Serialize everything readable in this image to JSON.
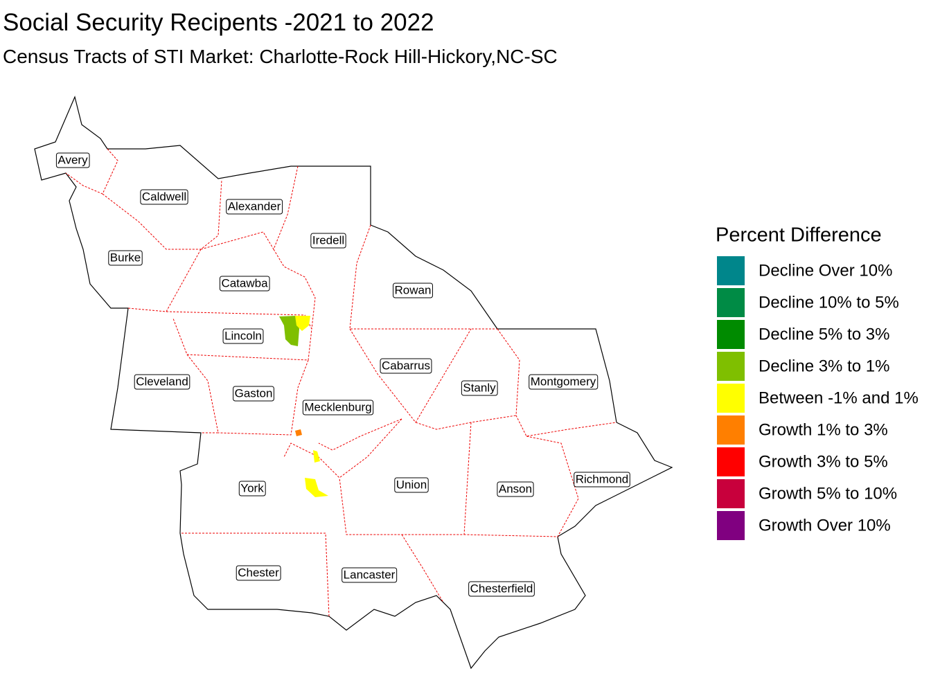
{
  "title": "Social Security Recipents -2021 to 2022",
  "subtitle": "Census Tracts of STI Market: Charlotte-Rock Hill-Hickory,NC-SC",
  "counties": [
    "Avery",
    "Caldwell",
    "Alexander",
    "Iredell",
    "Burke",
    "Catawba",
    "Rowan",
    "Lincoln",
    "Cabarrus",
    "Cleveland",
    "Stanly",
    "Montgomery",
    "Gaston",
    "Mecklenburg",
    "York",
    "Union",
    "Anson",
    "Richmond",
    "Chester",
    "Lancaster",
    "Chesterfield"
  ],
  "legend": {
    "title": "Percent Difference",
    "items": [
      {
        "label": "Decline Over 10%",
        "color": "#00868b"
      },
      {
        "label": "Decline 10% to 5%",
        "color": "#008b45"
      },
      {
        "label": "Decline 5% to 3%",
        "color": "#008b00"
      },
      {
        "label": "Decline 3% to 1%",
        "color": "#7fbf00"
      },
      {
        "label": "Between -1% and 1%",
        "color": "#ffff00"
      },
      {
        "label": "Growth 1% to 3%",
        "color": "#ff7f00"
      },
      {
        "label": "Growth 3% to 5%",
        "color": "#ff0000"
      },
      {
        "label": "Growth 5% to 10%",
        "color": "#c8003c"
      },
      {
        "label": "Growth Over 10%",
        "color": "#800080"
      }
    ]
  }
}
